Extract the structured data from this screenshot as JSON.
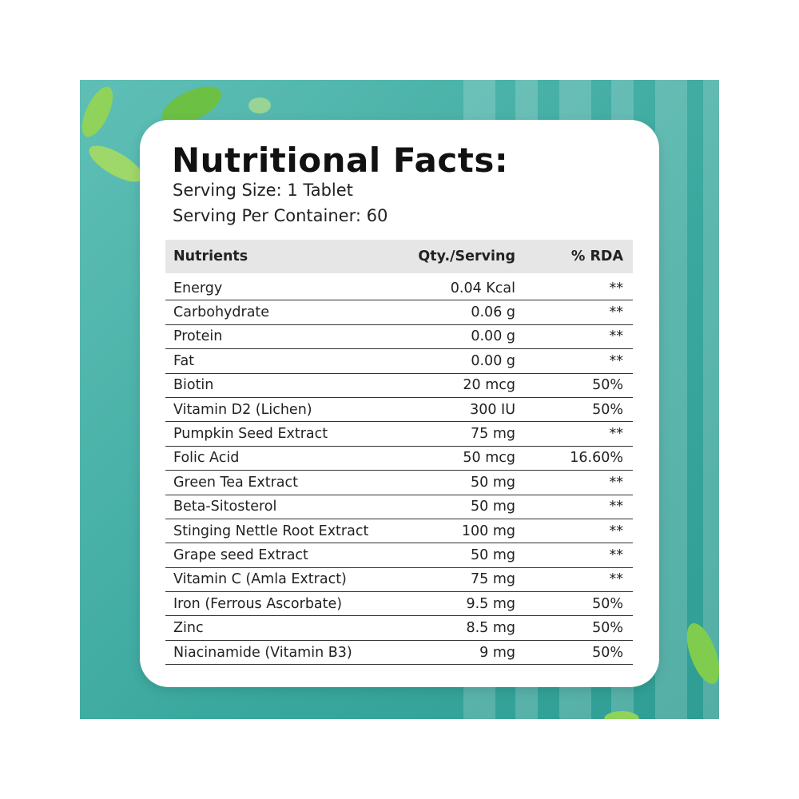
{
  "title": "Nutritional Facts:",
  "serving_size": "Serving Size: 1 Tablet",
  "servings_per_container": "Serving Per Container: 60",
  "table": {
    "headers": [
      "Nutrients",
      "Qty./Serving",
      "% RDA"
    ],
    "rows": [
      [
        "Energy",
        "0.04 Kcal",
        "**"
      ],
      [
        "Carbohydrate",
        "0.06 g",
        "**"
      ],
      [
        "Protein",
        "0.00 g",
        "**"
      ],
      [
        "Fat",
        "0.00 g",
        "**"
      ],
      [
        "Biotin",
        "20 mcg",
        "50%"
      ],
      [
        "Vitamin D2 (Lichen)",
        "300 IU",
        "50%"
      ],
      [
        "Pumpkin Seed Extract",
        "75 mg",
        "**"
      ],
      [
        "Folic Acid",
        "50 mcg",
        "16.60%"
      ],
      [
        "Green Tea Extract",
        "50 mg",
        "**"
      ],
      [
        "Beta-Sitosterol",
        "50 mg",
        "**"
      ],
      [
        "Stinging Nettle Root Extract",
        "100 mg",
        "**"
      ],
      [
        "Grape seed Extract",
        "50 mg",
        "**"
      ],
      [
        "Vitamin C (Amla Extract)",
        "75 mg",
        "**"
      ],
      [
        "Iron (Ferrous Ascorbate)",
        "9.5 mg",
        "50%"
      ],
      [
        "Zinc",
        "8.5 mg",
        "50%"
      ],
      [
        "Niacinamide (Vitamin B3)",
        "9 mg",
        "50%"
      ]
    ]
  }
}
